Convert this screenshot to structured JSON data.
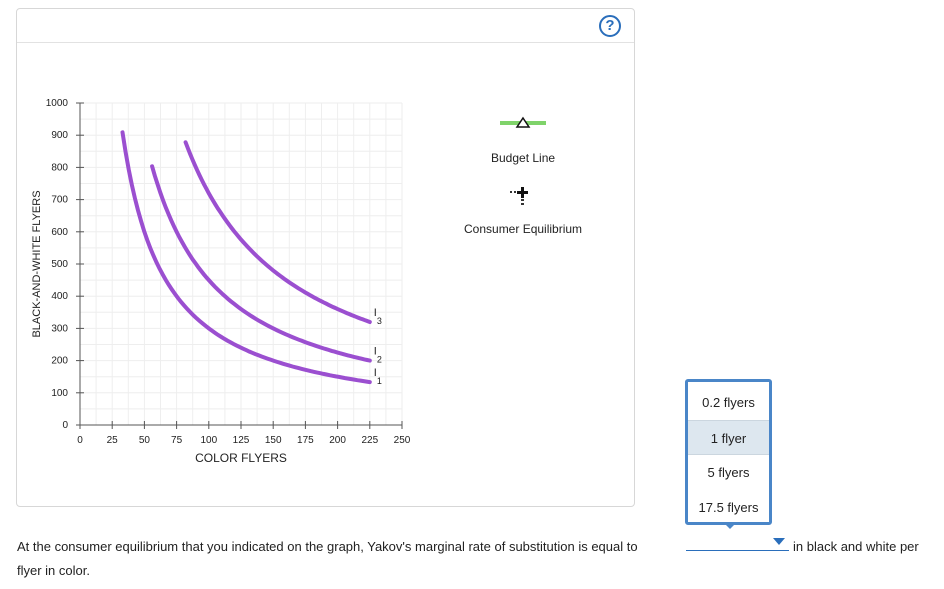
{
  "chart_data": {
    "type": "line",
    "xlabel": "COLOR FLYERS",
    "ylabel": "BLACK-AND-WHITE FLYERS",
    "xlim": [
      0,
      250
    ],
    "ylim": [
      0,
      1000
    ],
    "x_ticks": [
      "0",
      "25",
      "50",
      "75",
      "100",
      "125",
      "150",
      "175",
      "200",
      "225",
      "250"
    ],
    "y_ticks": [
      "0",
      "100",
      "200",
      "300",
      "400",
      "500",
      "600",
      "700",
      "800",
      "900",
      "1000"
    ],
    "x_tick_values": [
      0,
      25,
      50,
      75,
      100,
      125,
      150,
      175,
      200,
      225,
      250
    ],
    "y_tick_values": [
      0,
      100,
      200,
      300,
      400,
      500,
      600,
      700,
      800,
      900,
      1000
    ],
    "grid": true,
    "series": [
      {
        "name": "I1",
        "sub": "1",
        "color": "#9b4fd0",
        "k": 30000,
        "x_start": 33,
        "x_end": 225
      },
      {
        "name": "I2",
        "sub": "2",
        "color": "#9b4fd0",
        "k": 45000,
        "x_start": 56,
        "x_end": 225
      },
      {
        "name": "I3",
        "sub": "3",
        "color": "#9b4fd0",
        "k": 72000,
        "x_start": 82,
        "x_end": 225
      }
    ]
  },
  "legend": {
    "budget_line_label": "Budget Line",
    "budget_line_color": "#7fd36a",
    "equilibrium_label": "Consumer Equilibrium"
  },
  "help_label": "?",
  "question": {
    "text_before": "At the consumer equilibrium that you indicated on the graph, Yakov's marginal rate of substitution is equal to",
    "text_after": "in black and white per",
    "text_line2": "flyer in color."
  },
  "dropdown": {
    "options": [
      "0.2 flyers",
      "1 flyer",
      "5 flyers",
      "17.5 flyers"
    ],
    "highlighted_index": 1
  }
}
